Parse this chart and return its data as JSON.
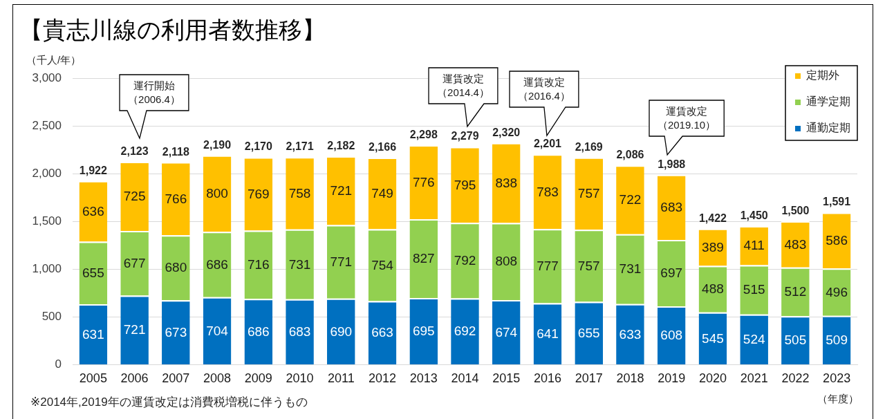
{
  "chart_data": {
    "type": "bar",
    "stacked": true,
    "title": "【貴志川線の利用者数推移】",
    "ylabel": "（千人/年）",
    "xlabel": "（年度）",
    "categories": [
      "2005",
      "2006",
      "2007",
      "2008",
      "2009",
      "2010",
      "2011",
      "2012",
      "2013",
      "2014",
      "2015",
      "2016",
      "2017",
      "2018",
      "2019",
      "2020",
      "2021",
      "2022",
      "2023"
    ],
    "series": [
      {
        "name": "通勤定期",
        "color": "#0070c0",
        "values": [
          631,
          721,
          673,
          704,
          686,
          683,
          690,
          663,
          695,
          692,
          674,
          641,
          655,
          633,
          608,
          545,
          524,
          505,
          509
        ]
      },
      {
        "name": "通学定期",
        "color": "#92d050",
        "values": [
          655,
          677,
          680,
          686,
          716,
          731,
          771,
          754,
          827,
          792,
          808,
          777,
          757,
          731,
          697,
          488,
          515,
          512,
          496
        ]
      },
      {
        "name": "定期外",
        "color": "#ffc000",
        "values": [
          636,
          725,
          766,
          800,
          769,
          758,
          721,
          749,
          776,
          795,
          838,
          783,
          757,
          722,
          683,
          389,
          411,
          483,
          586
        ]
      }
    ],
    "ylim": [
      0,
      3000
    ],
    "yticks": [
      0,
      500,
      {
        "value": 1000,
        "label": "1,000"
      },
      {
        "value": 1500,
        "label": "1,500"
      },
      {
        "value": 2000,
        "label": "2,000"
      },
      {
        "value": 2500,
        "label": "2,500"
      },
      {
        "value": 3000,
        "label": "3,000"
      }
    ],
    "grid": "y",
    "legend": "top right",
    "data_labels": true,
    "totals": [
      "1,922",
      "2,123",
      "2,118",
      "2,190",
      "2,170",
      "2,171",
      "2,182",
      "2,166",
      "2,298",
      "2,279",
      "2,320",
      "2,201",
      "2,169",
      "2,086",
      "1,988",
      "1,422",
      "1,450",
      "1,500",
      "1,591"
    ],
    "annotations": [
      "運行開始（2006.4）",
      "運賃改定（2014.4）",
      "運賃改定（2016.4）",
      "運賃改定（2019.10）",
      "※2014年,2019年の運賃改定は消費税増税に伴うもの"
    ]
  }
}
